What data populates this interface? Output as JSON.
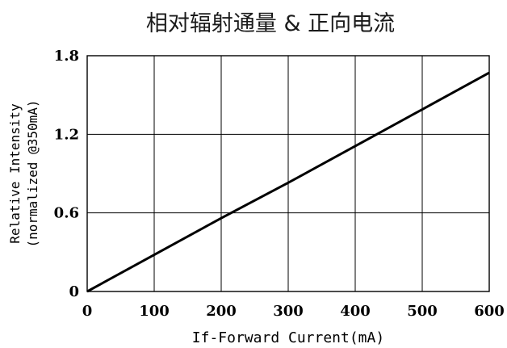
{
  "chart_data": {
    "type": "line",
    "title": "相对辐射通量 & 正向电流",
    "xlabel": "If-Forward Current(mA)",
    "ylabel": [
      "Relative Intensity",
      "(normalized @350mA)"
    ],
    "xlim": [
      0,
      600
    ],
    "ylim": [
      0,
      1.8
    ],
    "x_ticks": [
      0,
      100,
      200,
      300,
      400,
      500,
      600
    ],
    "x_tick_labels": [
      "0",
      "100",
      "200",
      "300",
      "400",
      "500",
      "600"
    ],
    "y_ticks": [
      0,
      0.6,
      1.2,
      1.8
    ],
    "y_tick_labels": [
      "0",
      "0.6",
      "1.2",
      "1.8"
    ],
    "grid": true,
    "series": [
      {
        "x": [
          0,
          100,
          200,
          300,
          400,
          500,
          600
        ],
        "values": [
          0,
          0.28,
          0.56,
          0.83,
          1.11,
          1.39,
          1.67
        ],
        "color": "#000000"
      }
    ]
  }
}
